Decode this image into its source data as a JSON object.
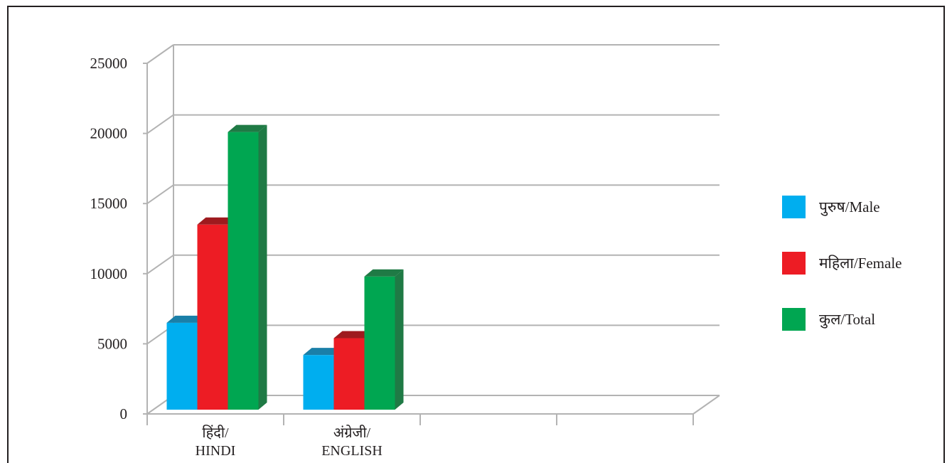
{
  "chart_data": {
    "type": "bar",
    "title": "",
    "xlabel": "",
    "ylabel": "",
    "categories": [
      {
        "line1": "हिंदी/",
        "line2": "HINDI"
      },
      {
        "line1": "अंग्रेजी/",
        "line2": "ENGLISH"
      },
      {
        "line1": "",
        "line2": ""
      },
      {
        "line1": "",
        "line2": ""
      }
    ],
    "series": [
      {
        "name": "पुरुष/Male",
        "color": "#00aeef",
        "top_color": "#1a7fa8",
        "values": [
          6500,
          4200,
          null,
          null
        ]
      },
      {
        "name": "महिला/Female",
        "color": "#ed1c24",
        "top_color": "#9e1a1e",
        "values": [
          13500,
          5400,
          null,
          null
        ]
      },
      {
        "name": "कुल/Total",
        "color": "#00a651",
        "top_color": "#1f7a45",
        "values": [
          20100,
          9800,
          null,
          null
        ]
      }
    ],
    "ylim": [
      0,
      25000
    ],
    "yticks": [
      "0",
      "5000",
      "10000",
      "15000",
      "20000",
      "25000"
    ],
    "grid": true,
    "legend_position": "right",
    "gridline_color": "#b3b3b3"
  }
}
